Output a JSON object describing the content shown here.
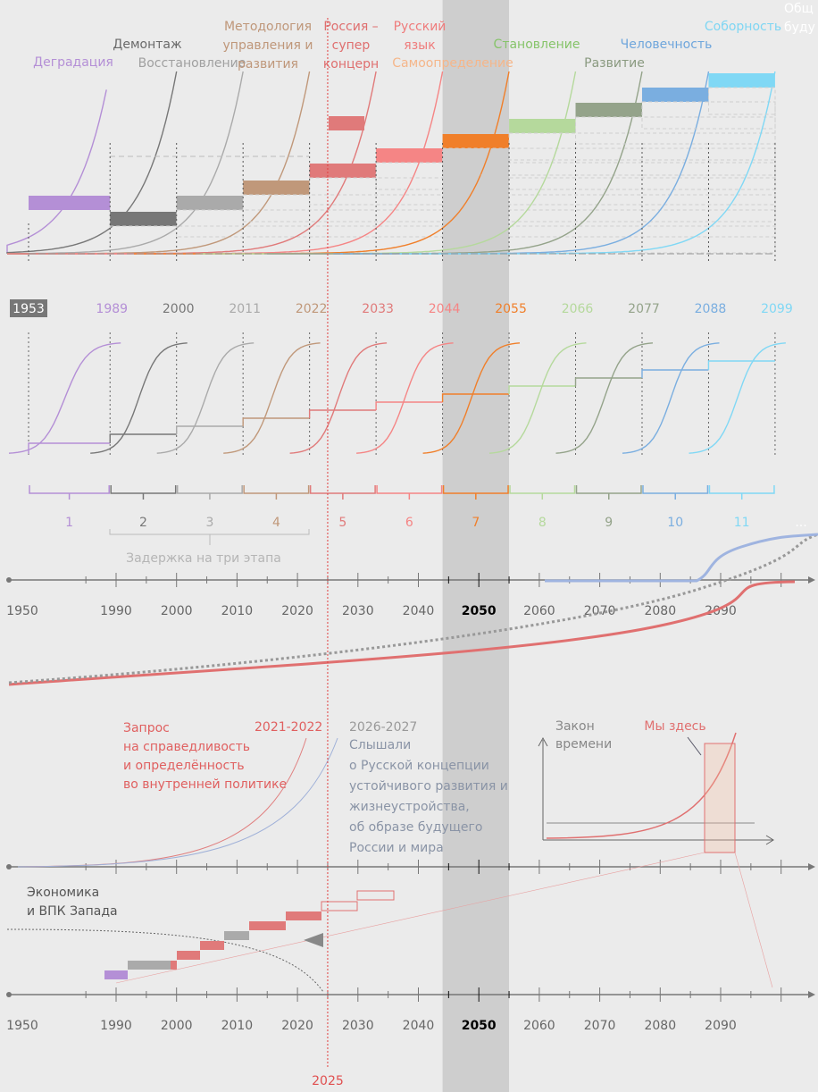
{
  "stage_labels": [
    {
      "lines": [
        "Деградация"
      ],
      "color": "#b48fd6"
    },
    {
      "lines": [
        "Демонтаж"
      ],
      "color": "#6a6a6a"
    },
    {
      "lines": [
        "Восстановление"
      ],
      "color": "#a0a0a0"
    },
    {
      "lines": [
        "Методология",
        "управления и",
        "развития"
      ],
      "color": "#bf977a"
    },
    {
      "lines": [
        "Россия –",
        "супер",
        "концерн"
      ],
      "color": "#df6f6f"
    },
    {
      "lines": [
        "Русский",
        "язык"
      ],
      "color": "#ef7c7c"
    },
    {
      "lines": [
        "Самоопределение"
      ],
      "color": "#f5b68a"
    },
    {
      "lines": [
        "Становление"
      ],
      "color": "#86c46a"
    },
    {
      "lines": [
        "Развитие"
      ],
      "color": "#8a9a80"
    },
    {
      "lines": [
        "Человечность"
      ],
      "color": "#6fa6dc"
    },
    {
      "lines": [
        "Соборность"
      ],
      "color": "#7fd6f3"
    },
    {
      "lines": [
        "Общ",
        "буду"
      ],
      "color": "#ffffff"
    }
  ],
  "stage_years": [
    1953,
    1989,
    2000,
    2011,
    2022,
    2033,
    2044,
    2055,
    2066,
    2077,
    2088,
    2099
  ],
  "stage_colors": [
    "#b48fd6",
    "#777777",
    "#aaaaaa",
    "#c0987a",
    "#e07a7a",
    "#f58585",
    "#f07f2a",
    "#b5d99c",
    "#94a38a",
    "#7aaee0",
    "#80d8f5"
  ],
  "stage_numbers": [
    "1",
    "2",
    "3",
    "4",
    "5",
    "6",
    "7",
    "8",
    "9",
    "10",
    "11",
    "..."
  ],
  "delay_label": "Задержка на три этапа",
  "timeline_years": [
    1950,
    1990,
    2000,
    2010,
    2020,
    2030,
    2040,
    2050,
    2060,
    2070,
    2080,
    2090
  ],
  "highlight_band": [
    2044,
    2055
  ],
  "current_year": 2025,
  "request": {
    "lines": [
      "Запрос",
      "на справедливость",
      "и определённость",
      "во внутренней политике"
    ],
    "date": "2021-2022"
  },
  "heard": {
    "lines": [
      "Слышали",
      "о Русской концепции",
      "устойчивого развития и",
      "жизнеустройства,",
      "об образе будущего",
      "России и мира"
    ],
    "date": "2026-2027"
  },
  "law": {
    "lines": [
      "Закон",
      "времени"
    ],
    "marker": "Мы здесь"
  },
  "west": {
    "lines": [
      "Экономика",
      "и ВПК Запада"
    ]
  }
}
